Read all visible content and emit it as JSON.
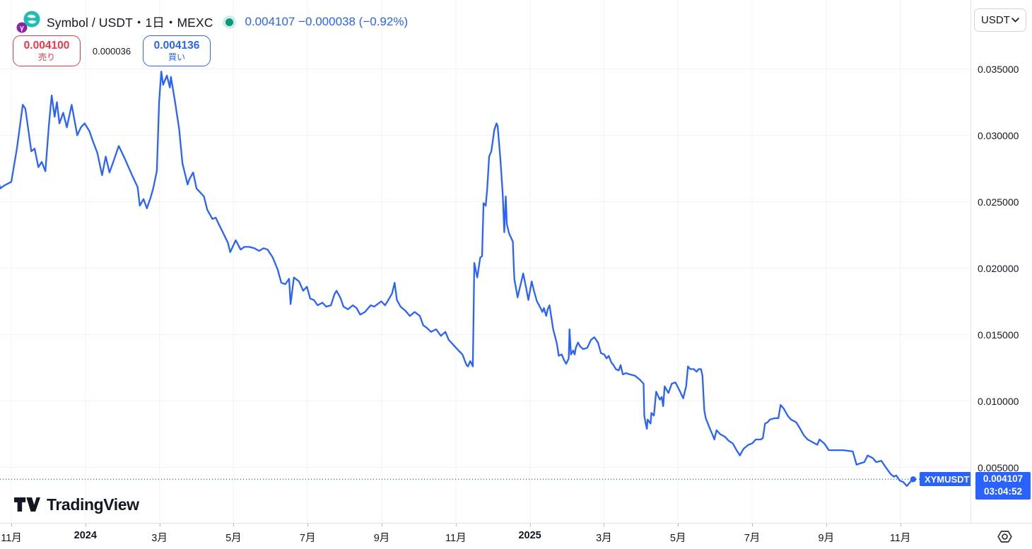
{
  "header": {
    "symbol_title": "Symbol / USDT・1日・MEXC",
    "price_line": "0.004107 −0.000038 (−0.92%)",
    "sell": {
      "price": "0.004100",
      "label": "売り"
    },
    "spread": "0.000036",
    "buy": {
      "price": "0.004136",
      "label": "買い"
    }
  },
  "currency_selector": {
    "value": "USDT"
  },
  "price_label": {
    "symbol": "XYMUSDT",
    "price": "0.004107",
    "countdown": "03:04:52"
  },
  "footer": {
    "brand": "TradingView"
  },
  "colors": {
    "line": "#2962FF",
    "red": "#f23645",
    "green": "#089981",
    "grid": "#f0f3fa",
    "border": "#e0e3eb",
    "text": "#131722",
    "badge": "#2962FF"
  },
  "chart_data": {
    "type": "line",
    "title": "Symbol / USDT 1D MEXC",
    "x_unit": "months_since_2023-11-01",
    "last_price": 0.004107,
    "x_axis": {
      "ticks": [
        {
          "label": "11月",
          "m": 0
        },
        {
          "label": "2024",
          "m": 2,
          "bold": true
        },
        {
          "label": "3月",
          "m": 4
        },
        {
          "label": "5月",
          "m": 6
        },
        {
          "label": "7月",
          "m": 8
        },
        {
          "label": "9月",
          "m": 10
        },
        {
          "label": "11月",
          "m": 12
        },
        {
          "label": "2025",
          "m": 14,
          "bold": true
        },
        {
          "label": "3月",
          "m": 16
        },
        {
          "label": "5月",
          "m": 18
        },
        {
          "label": "7月",
          "m": 20
        },
        {
          "label": "9月",
          "m": 22
        },
        {
          "label": "11月",
          "m": 24
        }
      ]
    },
    "y_axis": {
      "ticks": [
        {
          "label": "0.035000",
          "value": 0.035
        },
        {
          "label": "0.030000",
          "value": 0.03
        },
        {
          "label": "0.025000",
          "value": 0.025
        },
        {
          "label": "0.020000",
          "value": 0.02
        },
        {
          "label": "0.015000",
          "value": 0.015
        },
        {
          "label": "0.010000",
          "value": 0.01
        },
        {
          "label": "0.005000",
          "value": 0.005
        }
      ],
      "range": [
        0.0005,
        0.0362
      ]
    },
    "series": [
      [
        -0.4,
        0.0272
      ],
      [
        -0.3,
        0.026
      ],
      [
        -0.2,
        0.0262
      ],
      [
        0,
        0.0265
      ],
      [
        0.15,
        0.029
      ],
      [
        0.31,
        0.0323
      ],
      [
        0.38,
        0.032
      ],
      [
        0.54,
        0.0288
      ],
      [
        0.63,
        0.029
      ],
      [
        0.73,
        0.0276
      ],
      [
        0.82,
        0.028
      ],
      [
        0.92,
        0.0273
      ],
      [
        1.02,
        0.0309
      ],
      [
        1.09,
        0.033
      ],
      [
        1.17,
        0.0314
      ],
      [
        1.23,
        0.0325
      ],
      [
        1.3,
        0.0309
      ],
      [
        1.4,
        0.0317
      ],
      [
        1.5,
        0.0306
      ],
      [
        1.63,
        0.0323
      ],
      [
        1.78,
        0.03
      ],
      [
        1.88,
        0.0306
      ],
      [
        1.98,
        0.0309
      ],
      [
        2.11,
        0.0303
      ],
      [
        2.21,
        0.0295
      ],
      [
        2.32,
        0.0287
      ],
      [
        2.45,
        0.027
      ],
      [
        2.55,
        0.0284
      ],
      [
        2.65,
        0.0272
      ],
      [
        2.74,
        0.0279
      ],
      [
        2.9,
        0.0292
      ],
      [
        3.07,
        0.0282
      ],
      [
        3.26,
        0.027
      ],
      [
        3.41,
        0.0261
      ],
      [
        3.47,
        0.0247
      ],
      [
        3.57,
        0.0252
      ],
      [
        3.66,
        0.0245
      ],
      [
        3.76,
        0.0253
      ],
      [
        3.83,
        0.026
      ],
      [
        3.93,
        0.0273
      ],
      [
        3.99,
        0.0325
      ],
      [
        4.05,
        0.0348
      ],
      [
        4.1,
        0.0338
      ],
      [
        4.2,
        0.0345
      ],
      [
        4.28,
        0.0336
      ],
      [
        4.31,
        0.0344
      ],
      [
        4.41,
        0.0327
      ],
      [
        4.53,
        0.0305
      ],
      [
        4.62,
        0.0279
      ],
      [
        4.76,
        0.0263
      ],
      [
        4.81,
        0.0267
      ],
      [
        4.91,
        0.0272
      ],
      [
        5,
        0.026
      ],
      [
        5.2,
        0.0254
      ],
      [
        5.29,
        0.0244
      ],
      [
        5.43,
        0.0237
      ],
      [
        5.52,
        0.0238
      ],
      [
        5.62,
        0.0232
      ],
      [
        5.71,
        0.0227
      ],
      [
        5.85,
        0.0219
      ],
      [
        5.91,
        0.0212
      ],
      [
        6.06,
        0.0221
      ],
      [
        6.19,
        0.0214
      ],
      [
        6.29,
        0.0216
      ],
      [
        6.42,
        0.0216
      ],
      [
        6.56,
        0.0215
      ],
      [
        6.69,
        0.0213
      ],
      [
        6.81,
        0.0215
      ],
      [
        6.92,
        0.0214
      ],
      [
        7.06,
        0.0208
      ],
      [
        7.19,
        0.0199
      ],
      [
        7.29,
        0.0189
      ],
      [
        7.4,
        0.0188
      ],
      [
        7.5,
        0.0192
      ],
      [
        7.54,
        0.0173
      ],
      [
        7.63,
        0.0193
      ],
      [
        7.77,
        0.019
      ],
      [
        7.88,
        0.0183
      ],
      [
        7.98,
        0.0186
      ],
      [
        8.07,
        0.0177
      ],
      [
        8.17,
        0.0176
      ],
      [
        8.27,
        0.0172
      ],
      [
        8.4,
        0.0174
      ],
      [
        8.5,
        0.0171
      ],
      [
        8.63,
        0.0172
      ],
      [
        8.72,
        0.018
      ],
      [
        8.78,
        0.0183
      ],
      [
        8.88,
        0.0178
      ],
      [
        8.97,
        0.0171
      ],
      [
        9.09,
        0.0169
      ],
      [
        9.22,
        0.0172
      ],
      [
        9.32,
        0.017
      ],
      [
        9.42,
        0.0165
      ],
      [
        9.55,
        0.0167
      ],
      [
        9.7,
        0.0172
      ],
      [
        9.8,
        0.0171
      ],
      [
        9.89,
        0.0173
      ],
      [
        9.99,
        0.0175
      ],
      [
        10.09,
        0.0172
      ],
      [
        10.18,
        0.0176
      ],
      [
        10.28,
        0.0181
      ],
      [
        10.35,
        0.0189
      ],
      [
        10.41,
        0.0176
      ],
      [
        10.51,
        0.0171
      ],
      [
        10.64,
        0.0168
      ],
      [
        10.76,
        0.0164
      ],
      [
        10.89,
        0.0167
      ],
      [
        11.03,
        0.0164
      ],
      [
        11.12,
        0.0157
      ],
      [
        11.22,
        0.0155
      ],
      [
        11.33,
        0.0152
      ],
      [
        11.47,
        0.0154
      ],
      [
        11.6,
        0.0149
      ],
      [
        11.72,
        0.0152
      ],
      [
        11.81,
        0.0146
      ],
      [
        11.91,
        0.0143
      ],
      [
        12.04,
        0.0139
      ],
      [
        12.18,
        0.0135
      ],
      [
        12.29,
        0.0127
      ],
      [
        12.33,
        0.0126
      ],
      [
        12.39,
        0.013
      ],
      [
        12.43,
        0.0128
      ],
      [
        12.46,
        0.0126
      ],
      [
        12.48,
        0.0165
      ],
      [
        12.5,
        0.0204
      ],
      [
        12.58,
        0.0193
      ],
      [
        12.66,
        0.0208
      ],
      [
        12.71,
        0.0209
      ],
      [
        12.75,
        0.0249
      ],
      [
        12.81,
        0.0247
      ],
      [
        12.85,
        0.026
      ],
      [
        12.9,
        0.0284
      ],
      [
        12.96,
        0.0288
      ],
      [
        13.04,
        0.0304
      ],
      [
        13.1,
        0.0309
      ],
      [
        13.13,
        0.0307
      ],
      [
        13.17,
        0.0294
      ],
      [
        13.21,
        0.028
      ],
      [
        13.27,
        0.0255
      ],
      [
        13.31,
        0.0227
      ],
      [
        13.35,
        0.0254
      ],
      [
        13.38,
        0.0233
      ],
      [
        13.44,
        0.0226
      ],
      [
        13.54,
        0.022
      ],
      [
        13.58,
        0.0192
      ],
      [
        13.67,
        0.0178
      ],
      [
        13.71,
        0.0183
      ],
      [
        13.82,
        0.0196
      ],
      [
        13.9,
        0.0185
      ],
      [
        13.96,
        0.0176
      ],
      [
        14.05,
        0.019
      ],
      [
        14.11,
        0.0183
      ],
      [
        14.19,
        0.0175
      ],
      [
        14.25,
        0.0172
      ],
      [
        14.34,
        0.0167
      ],
      [
        14.38,
        0.017
      ],
      [
        14.44,
        0.0164
      ],
      [
        14.48,
        0.0169
      ],
      [
        14.53,
        0.0172
      ],
      [
        14.63,
        0.0154
      ],
      [
        14.73,
        0.0143
      ],
      [
        14.78,
        0.0134
      ],
      [
        14.86,
        0.0135
      ],
      [
        14.92,
        0.0131
      ],
      [
        14.98,
        0.0128
      ],
      [
        15.05,
        0.0132
      ],
      [
        15.07,
        0.0154
      ],
      [
        15.11,
        0.0135
      ],
      [
        15.17,
        0.0138
      ],
      [
        15.21,
        0.0135
      ],
      [
        15.24,
        0.014
      ],
      [
        15.3,
        0.0144
      ],
      [
        15.36,
        0.0141
      ],
      [
        15.44,
        0.0139
      ],
      [
        15.55,
        0.014
      ],
      [
        15.65,
        0.0146
      ],
      [
        15.74,
        0.0148
      ],
      [
        15.84,
        0.0144
      ],
      [
        15.92,
        0.0136
      ],
      [
        16.01,
        0.0135
      ],
      [
        16.07,
        0.0132
      ],
      [
        16.13,
        0.0134
      ],
      [
        16.2,
        0.0129
      ],
      [
        16.26,
        0.0127
      ],
      [
        16.32,
        0.0124
      ],
      [
        16.4,
        0.0123
      ],
      [
        16.45,
        0.0127
      ],
      [
        16.51,
        0.012
      ],
      [
        16.59,
        0.0121
      ],
      [
        16.7,
        0.012
      ],
      [
        16.84,
        0.0119
      ],
      [
        16.97,
        0.0116
      ],
      [
        17.07,
        0.0113
      ],
      [
        17.09,
        0.0089
      ],
      [
        17.12,
        0.0084
      ],
      [
        17.16,
        0.0079
      ],
      [
        17.18,
        0.0086
      ],
      [
        17.26,
        0.0083
      ],
      [
        17.28,
        0.0091
      ],
      [
        17.35,
        0.0089
      ],
      [
        17.41,
        0.0107
      ],
      [
        17.51,
        0.0101
      ],
      [
        17.56,
        0.0103
      ],
      [
        17.6,
        0.0096
      ],
      [
        17.64,
        0.0111
      ],
      [
        17.74,
        0.0106
      ],
      [
        17.83,
        0.0113
      ],
      [
        17.93,
        0.0114
      ],
      [
        18.04,
        0.0108
      ],
      [
        18.14,
        0.0102
      ],
      [
        18.22,
        0.0111
      ],
      [
        18.27,
        0.0126
      ],
      [
        18.33,
        0.0124
      ],
      [
        18.43,
        0.0124
      ],
      [
        18.5,
        0.0122
      ],
      [
        18.56,
        0.0124
      ],
      [
        18.62,
        0.0124
      ],
      [
        18.66,
        0.0119
      ],
      [
        18.71,
        0.0093
      ],
      [
        18.75,
        0.0087
      ],
      [
        18.85,
        0.008
      ],
      [
        18.94,
        0.0074
      ],
      [
        18.98,
        0.0071
      ],
      [
        19.04,
        0.0078
      ],
      [
        19.14,
        0.0075
      ],
      [
        19.27,
        0.0073
      ],
      [
        19.37,
        0.007
      ],
      [
        19.48,
        0.0068
      ],
      [
        19.58,
        0.0063
      ],
      [
        19.67,
        0.0059
      ],
      [
        19.77,
        0.0064
      ],
      [
        19.9,
        0.0067
      ],
      [
        20,
        0.0068
      ],
      [
        20.1,
        0.0071
      ],
      [
        20.23,
        0.0071
      ],
      [
        20.29,
        0.0072
      ],
      [
        20.35,
        0.0083
      ],
      [
        20.42,
        0.0084
      ],
      [
        20.48,
        0.0086
      ],
      [
        20.61,
        0.0087
      ],
      [
        20.71,
        0.0087
      ],
      [
        20.77,
        0.0097
      ],
      [
        20.86,
        0.0094
      ],
      [
        20.96,
        0.0089
      ],
      [
        21.05,
        0.0086
      ],
      [
        21.19,
        0.0084
      ],
      [
        21.3,
        0.0079
      ],
      [
        21.4,
        0.0074
      ],
      [
        21.5,
        0.0071
      ],
      [
        21.63,
        0.0069
      ],
      [
        21.76,
        0.0067
      ],
      [
        21.82,
        0.0071
      ],
      [
        21.95,
        0.0068
      ],
      [
        22.07,
        0.0063
      ],
      [
        22.2,
        0.0063
      ],
      [
        22.45,
        0.0063
      ],
      [
        22.72,
        0.0062
      ],
      [
        22.82,
        0.0052
      ],
      [
        22.91,
        0.0053
      ],
      [
        23.03,
        0.0054
      ],
      [
        23.12,
        0.0059
      ],
      [
        23.26,
        0.0057
      ],
      [
        23.35,
        0.0054
      ],
      [
        23.49,
        0.0055
      ],
      [
        23.61,
        0.005
      ],
      [
        23.74,
        0.0045
      ],
      [
        23.83,
        0.0043
      ],
      [
        23.89,
        0.0044
      ],
      [
        23.99,
        0.004
      ],
      [
        24.08,
        0.0039
      ],
      [
        24.18,
        0.0036
      ],
      [
        24.27,
        0.0039
      ],
      [
        24.35,
        0.004107
      ]
    ]
  }
}
